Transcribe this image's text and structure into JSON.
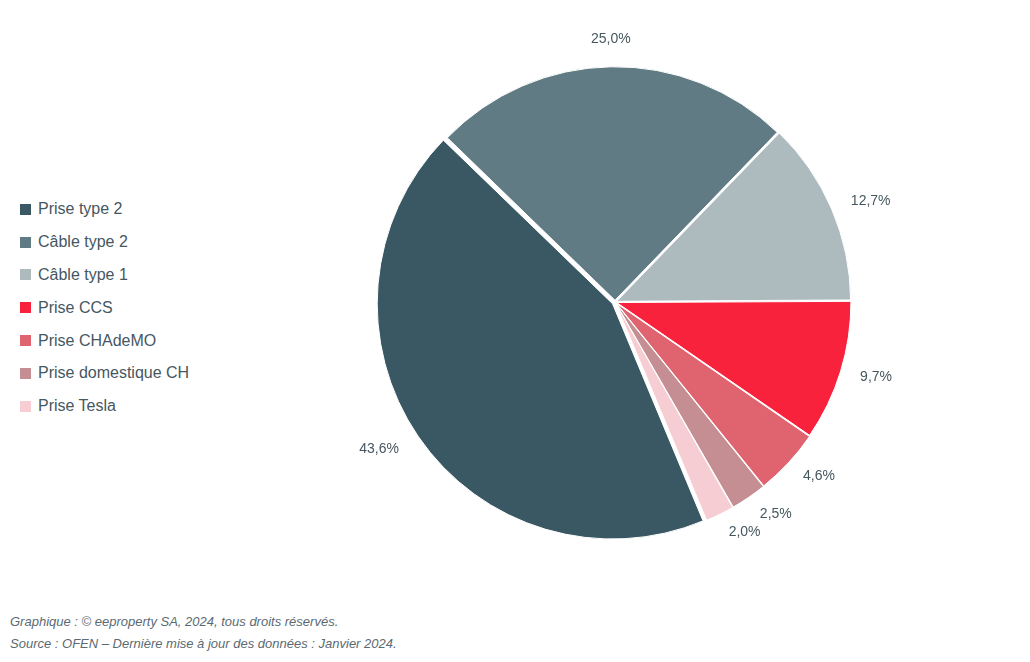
{
  "chart_data": {
    "type": "pie",
    "categories": [
      "Prise type 2",
      "Câble type 2",
      "Câble type 1",
      "Prise CCS",
      "Prise CHAdeMO",
      "Prise domestique CH",
      "Prise Tesla"
    ],
    "values": [
      43.6,
      25.0,
      12.7,
      9.7,
      4.6,
      2.5,
      2.0
    ],
    "value_labels": [
      "43,6%",
      "25,0%",
      "12,7%",
      "9,7%",
      "4,6%",
      "2,5%",
      "2,0%"
    ],
    "colors": [
      "#3a5864",
      "#607b84",
      "#adbbbf",
      "#f8223d",
      "#e06370",
      "#c48e93",
      "#f6cdd2"
    ],
    "legend": "left",
    "data_labels": true,
    "annotations": [
      "Graphique : © eeproperty SA, 2024, tous droits réservés.",
      "Source : OFEN – Dernière mise à jour des données : Janvier 2024."
    ]
  }
}
